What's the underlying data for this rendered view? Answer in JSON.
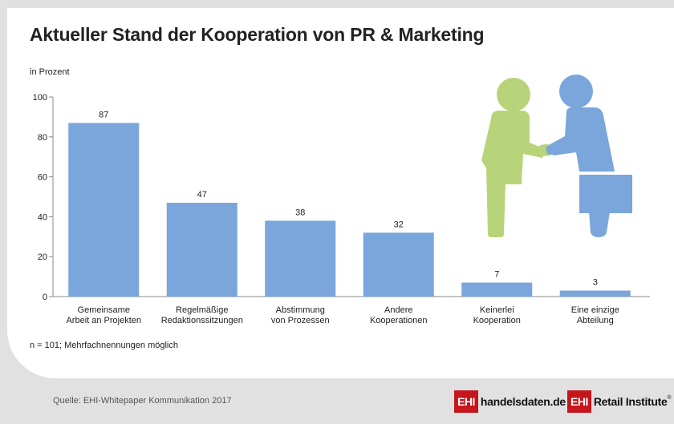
{
  "title": "Aktueller Stand der Kooperation von PR & Marketing",
  "unit_label": "in Prozent",
  "note": "n = 101; Mehrfachnennungen möglich",
  "source": "Quelle: EHI-Whitepaper Kommunikation 2017",
  "logos": {
    "logo1_box": "EHI",
    "logo1_text": "handelsdaten.de",
    "logo2_box": "EHI",
    "logo2_text": "Retail Institute",
    "logo2_reg": "®"
  },
  "colors": {
    "bar": "#7aa6dc",
    "person_left": "#b8d47a",
    "person_right": "#7aa6dc",
    "logo_red": "#c4161c",
    "background": "#e1e1e1"
  },
  "icons": [
    "handshake-people-icon",
    "briefcase-icon"
  ],
  "chart_data": {
    "type": "bar",
    "categories": [
      [
        "Gemeinsame",
        "Arbeit an Projekten"
      ],
      [
        "Regelmäßige",
        "Redaktionssitzungen"
      ],
      [
        "Abstimmung",
        "von Prozessen"
      ],
      [
        "Andere",
        "Kooperationen"
      ],
      [
        "Keinerlei",
        "Kooperation"
      ],
      [
        "Eine einzige",
        "Abteilung"
      ]
    ],
    "values": [
      87,
      47,
      38,
      32,
      7,
      3
    ],
    "ylim": [
      0,
      100
    ],
    "yticks": [
      0,
      20,
      40,
      60,
      80,
      100
    ],
    "ylabel": "in Prozent",
    "grid": false,
    "legend": "none"
  }
}
